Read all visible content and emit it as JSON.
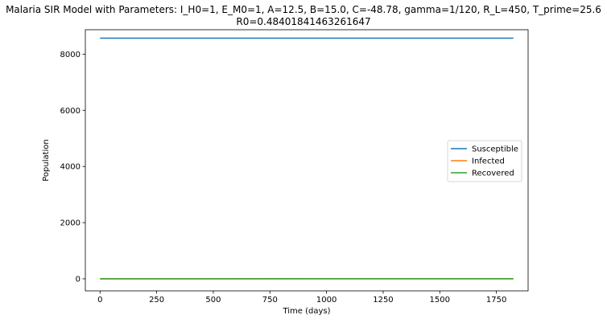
{
  "chart_data": {
    "type": "line",
    "title": "Malaria SIR Model with Parameters: I_H0=1, E_M0=1, A=12.5, B=15.0, C=-48.78, gamma=1/120, R_L=450, T_prime=25.6",
    "subtitle": "R0=0.48401841463261647",
    "xlabel": "Time (days)",
    "ylabel": "Population",
    "xlim": [
      -65,
      1890
    ],
    "ylim": [
      -430,
      8870
    ],
    "xticks": [
      0,
      250,
      500,
      750,
      1000,
      1250,
      1500,
      1750
    ],
    "yticks": [
      0,
      2000,
      4000,
      6000,
      8000
    ],
    "grid": false,
    "legend_position": "center-right",
    "series": [
      {
        "name": "Susceptible",
        "color": "#1f77b4",
        "x": [
          0,
          1825
        ],
        "y": [
          8570,
          8568
        ]
      },
      {
        "name": "Infected",
        "color": "#ff7f0e",
        "x": [
          0,
          1825
        ],
        "y": [
          1,
          1
        ]
      },
      {
        "name": "Recovered",
        "color": "#2ca02c",
        "x": [
          0,
          1825
        ],
        "y": [
          0,
          2
        ]
      }
    ]
  }
}
